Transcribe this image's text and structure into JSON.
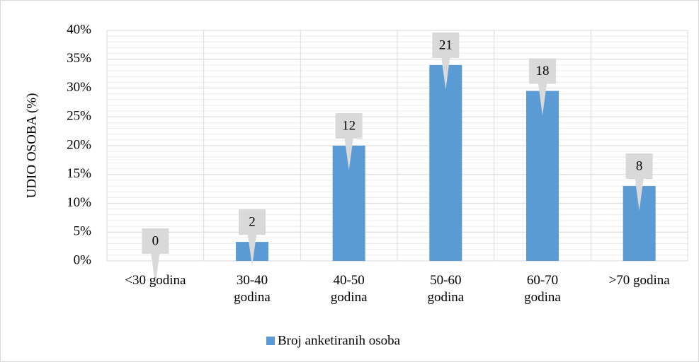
{
  "chart_data": {
    "type": "bar",
    "y_label": "UDIO OSOBA (%)",
    "categories": [
      "<30 godina",
      "30-40\ngodina",
      "40-50\ngodina",
      "50-60\ngodina",
      "60-70\ngodina",
      ">70 godina"
    ],
    "series": [
      {
        "name": "Broj anketiranih osoba",
        "color": "#5b9bd5",
        "values": [
          0,
          3.3,
          20,
          34,
          29.5,
          13
        ],
        "counts": [
          0,
          2,
          12,
          21,
          18,
          8
        ]
      }
    ],
    "ylim": [
      0,
      40
    ],
    "yticks": [
      {
        "value": 0,
        "label": "0%"
      },
      {
        "value": 5,
        "label": "5%"
      },
      {
        "value": 10,
        "label": "10%"
      },
      {
        "value": 15,
        "label": "15%"
      },
      {
        "value": 20,
        "label": "20%"
      },
      {
        "value": 25,
        "label": "25%"
      },
      {
        "value": 30,
        "label": "30%"
      },
      {
        "value": 35,
        "label": "35%"
      },
      {
        "value": 40,
        "label": "40%"
      }
    ],
    "grid": true,
    "minor_grid_step": 1,
    "legend": "bottom"
  }
}
